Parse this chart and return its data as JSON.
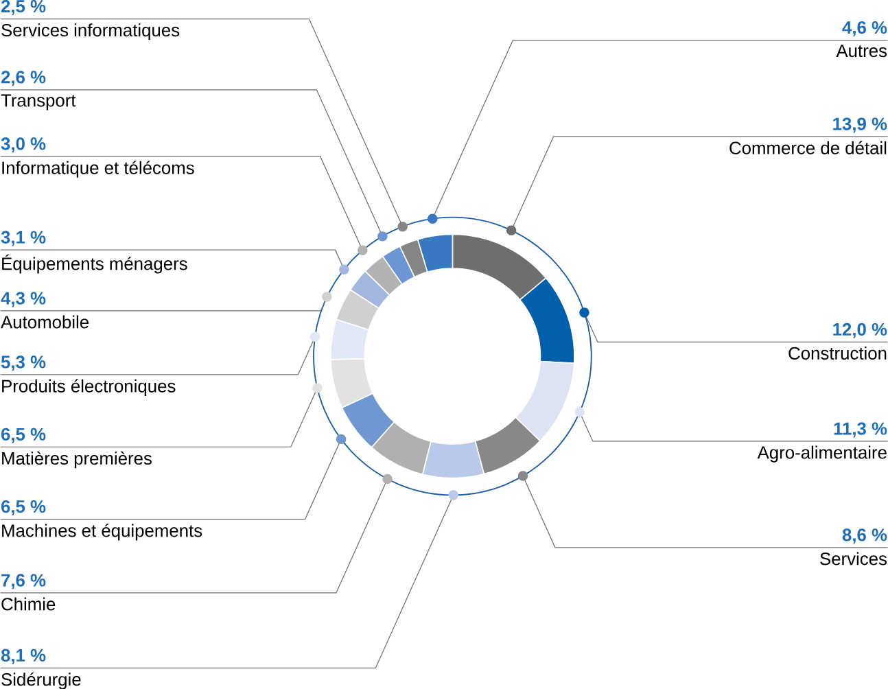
{
  "chart_data": {
    "type": "donut",
    "categories": [
      "Commerce de détail",
      "Construction",
      "Agro-alimentaire",
      "Services",
      "Sidérurgie",
      "Chimie",
      "Machines et équipements",
      "Matières premières",
      "Produits électroniques",
      "Automobile",
      "Équipements ménagers",
      "Informatique et télécoms",
      "Transport",
      "Services informatiques",
      "Autres"
    ],
    "values": [
      13.9,
      12.0,
      11.3,
      8.6,
      8.1,
      7.6,
      6.5,
      6.5,
      5.3,
      4.3,
      3.1,
      3.0,
      2.6,
      2.5,
      4.6
    ],
    "value_labels": [
      "13,9 %",
      "12,0 %",
      "11,3 %",
      "8,6 %",
      "8,1 %",
      "7,6 %",
      "6,5 %",
      "6,5 %",
      "5,3 %",
      "4,3 %",
      "3,1 %",
      "3,0 %",
      "2,6 %",
      "2,5 %",
      "4,6 %"
    ],
    "colors": [
      "#6e6e6e",
      "#0060ac",
      "#dde3f3",
      "#888888",
      "#bac8ea",
      "#b0b0b0",
      "#6f97d1",
      "#e2e2e2",
      "#e2e7f5",
      "#d0d0d0",
      "#a3b6e0",
      "#b2b2b2",
      "#6c95d3",
      "#858585",
      "#3679c0"
    ]
  }
}
